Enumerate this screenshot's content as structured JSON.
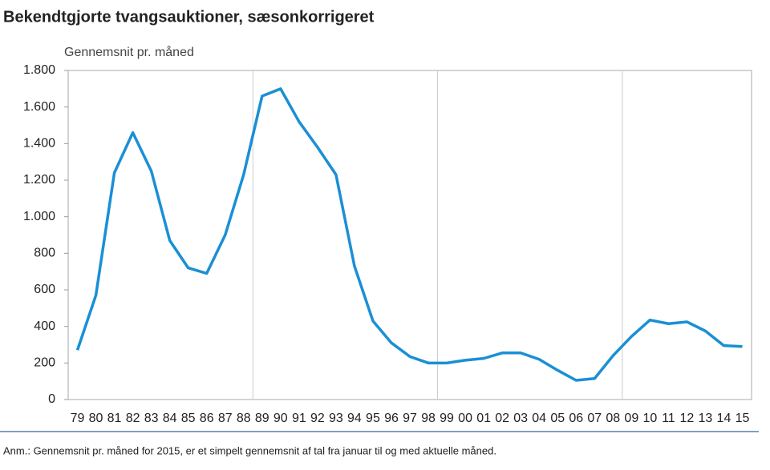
{
  "chart_data": {
    "type": "line",
    "title": "Bekendtgjorte tvangsauktioner, sæsonkorrigeret",
    "y_label": "Gennemsnit pr. måned",
    "note": "Anm.: Gennemsnit pr. måned for 2015, er et simpelt gennemsnit af tal fra januar til og med aktuelle måned.",
    "categories": [
      "79",
      "80",
      "81",
      "82",
      "83",
      "84",
      "85",
      "86",
      "87",
      "88",
      "89",
      "90",
      "91",
      "92",
      "93",
      "94",
      "95",
      "96",
      "97",
      "98",
      "99",
      "00",
      "01",
      "02",
      "03",
      "04",
      "05",
      "06",
      "07",
      "08",
      "09",
      "10",
      "11",
      "12",
      "13",
      "14",
      "15"
    ],
    "values": [
      270,
      570,
      1240,
      1460,
      1250,
      870,
      720,
      690,
      900,
      1230,
      1660,
      1700,
      1520,
      1380,
      1230,
      730,
      430,
      310,
      235,
      200,
      200,
      215,
      225,
      255,
      255,
      220,
      160,
      105,
      115,
      240,
      345,
      435,
      415,
      425,
      375,
      295,
      290
    ],
    "color": "#1a8fd6",
    "ylim": [
      0,
      1800
    ],
    "yticks": [
      0,
      200,
      400,
      600,
      800,
      {
        "value": 1000,
        "label": "1.000"
      },
      {
        "value": 1200,
        "label": "1.200"
      },
      {
        "value": 1400,
        "label": "1.400"
      },
      {
        "value": 1600,
        "label": "1.600"
      },
      {
        "value": 1800,
        "label": "1.800"
      }
    ]
  }
}
